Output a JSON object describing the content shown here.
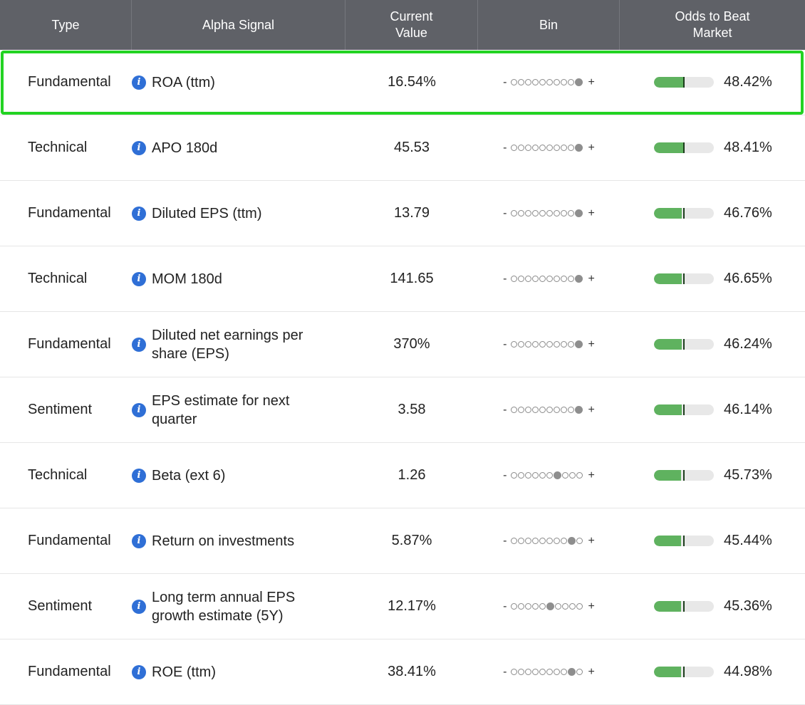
{
  "header": {
    "type": "Type",
    "signal": "Alpha Signal",
    "value_line1": "Current",
    "value_line2": "Value",
    "bin": "Bin",
    "odds_line1": "Odds to Beat",
    "odds_line2": "Market"
  },
  "bin_minus": "-",
  "bin_plus": "+",
  "rows": [
    {
      "type": "Fundamental",
      "signal": "ROA (ttm)",
      "value": "16.54%",
      "bin_index": 9,
      "odds": "48.42%",
      "odds_value": 48.42
    },
    {
      "type": "Technical",
      "signal": "APO 180d",
      "value": "45.53",
      "bin_index": 9,
      "odds": "48.41%",
      "odds_value": 48.41
    },
    {
      "type": "Fundamental",
      "signal": "Diluted EPS (ttm)",
      "value": "13.79",
      "bin_index": 9,
      "odds": "46.76%",
      "odds_value": 46.76
    },
    {
      "type": "Technical",
      "signal": "MOM 180d",
      "value": "141.65",
      "bin_index": 9,
      "odds": "46.65%",
      "odds_value": 46.65
    },
    {
      "type": "Fundamental",
      "signal": "Diluted net earnings per share (EPS)",
      "value": "370%",
      "bin_index": 9,
      "odds": "46.24%",
      "odds_value": 46.24
    },
    {
      "type": "Sentiment",
      "signal": "EPS estimate for next quarter",
      "value": "3.58",
      "bin_index": 9,
      "odds": "46.14%",
      "odds_value": 46.14
    },
    {
      "type": "Technical",
      "signal": "Beta (ext 6)",
      "value": "1.26",
      "bin_index": 6,
      "odds": "45.73%",
      "odds_value": 45.73
    },
    {
      "type": "Fundamental",
      "signal": "Return on investments",
      "value": "5.87%",
      "bin_index": 8,
      "odds": "45.44%",
      "odds_value": 45.44
    },
    {
      "type": "Sentiment",
      "signal": "Long term annual EPS growth estimate (5Y)",
      "value": "12.17%",
      "bin_index": 5,
      "odds": "45.36%",
      "odds_value": 45.36
    },
    {
      "type": "Fundamental",
      "signal": "ROE (ttm)",
      "value": "38.41%",
      "bin_index": 8,
      "odds": "44.98%",
      "odds_value": 44.98
    }
  ],
  "bin_count": 10,
  "colors": {
    "header_bg": "#5f6167",
    "info_icon": "#2f6fd6",
    "bar_fill": "#5fb25f",
    "highlight": "#22d322"
  },
  "icons": {
    "info": "info-icon"
  },
  "highlighted_row": 0
}
